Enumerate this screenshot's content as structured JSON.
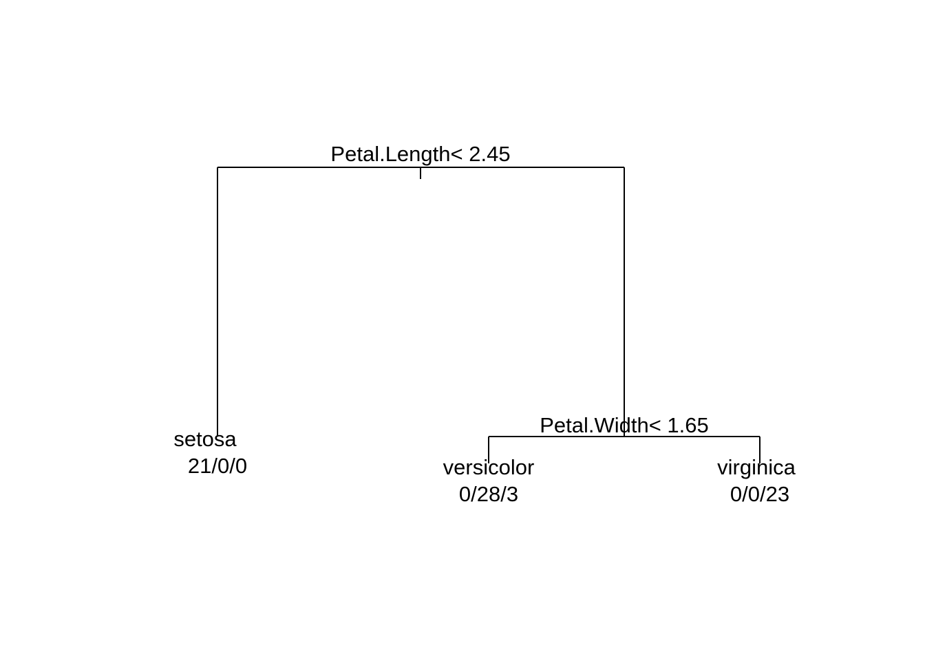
{
  "tree": {
    "root": {
      "split_label": "Petal.Length< 2.45",
      "left": {
        "class_label": "setosa",
        "counts": "21/0/0"
      },
      "right": {
        "split_label": "Petal.Width< 1.65",
        "left": {
          "class_label": "versicolor",
          "counts": "0/28/3"
        },
        "right": {
          "class_label": "virginica",
          "counts": "0/0/23"
        }
      }
    }
  }
}
